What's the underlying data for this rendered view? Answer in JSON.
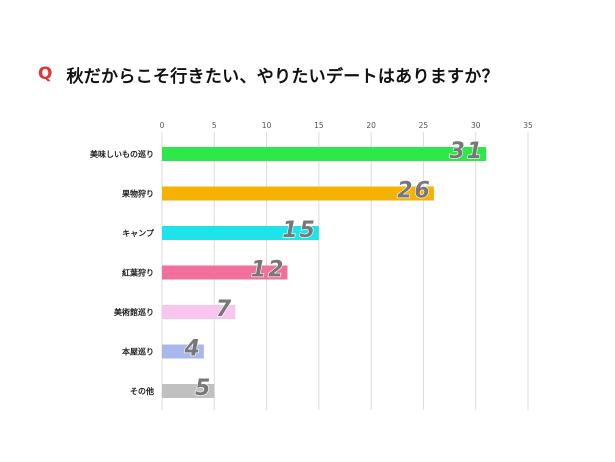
{
  "title": {
    "prefix": "Q",
    "text": "秋だからこそ行きたい、やりたいデートはありますか？"
  },
  "chart_data": {
    "type": "bar",
    "orientation": "horizontal",
    "categories": [
      "美味しいもの巡り",
      "果物狩り",
      "キャンプ",
      "紅葉狩り",
      "美術館巡り",
      "本屋巡り",
      "その他"
    ],
    "values": [
      31,
      26,
      15,
      12,
      7,
      4,
      5
    ],
    "colors": [
      "#2ee84a",
      "#f5b200",
      "#1ee3ea",
      "#f0709a",
      "#f9c4ee",
      "#a9b8ec",
      "#c0c0c0"
    ],
    "xlim": [
      0,
      35
    ],
    "xticks": [
      0,
      5,
      10,
      15,
      20,
      25,
      30,
      35
    ],
    "xticks_position": "top",
    "grid": true,
    "data_labels": true
  }
}
